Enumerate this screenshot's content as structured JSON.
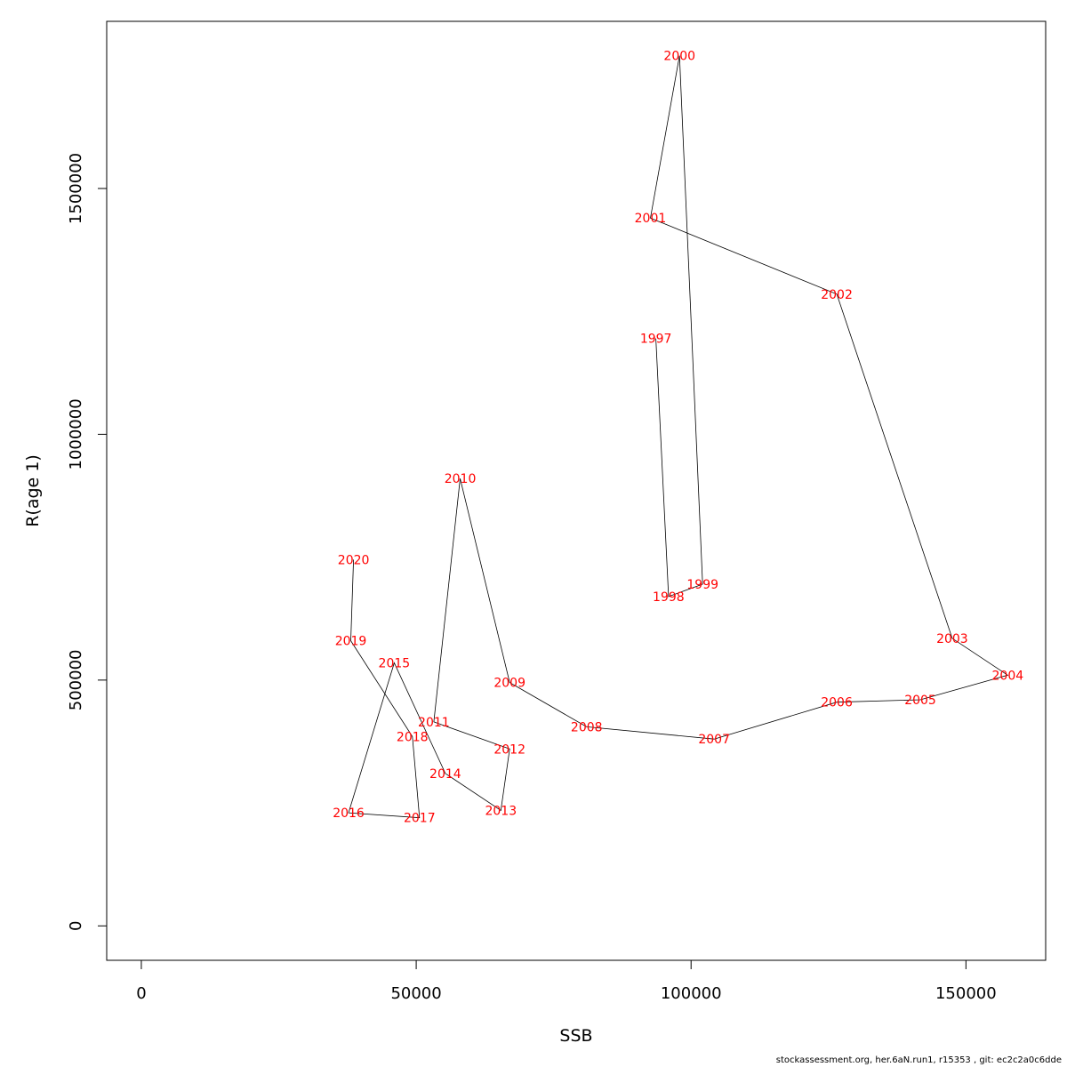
{
  "chart_data": {
    "type": "line",
    "title": "",
    "xlabel": "SSB",
    "ylabel": "R(age 1)",
    "xlim": [
      -6300,
      164500
    ],
    "ylim": [
      -70000,
      1840000
    ],
    "x_ticks": [
      0,
      50000,
      100000,
      150000
    ],
    "y_ticks": [
      0,
      500000,
      1000000,
      1500000
    ],
    "grid": false,
    "legend": "none",
    "line_color": "#000000",
    "label_color": "#ff0000",
    "points": [
      {
        "year": "1997",
        "x": 93600,
        "y": 1195000
      },
      {
        "year": "1998",
        "x": 95900,
        "y": 670000
      },
      {
        "year": "1999",
        "x": 102100,
        "y": 695000
      },
      {
        "year": "2000",
        "x": 97900,
        "y": 1770000
      },
      {
        "year": "2001",
        "x": 92600,
        "y": 1440000
      },
      {
        "year": "2002",
        "x": 126500,
        "y": 1285000
      },
      {
        "year": "2003",
        "x": 147500,
        "y": 585000
      },
      {
        "year": "2004",
        "x": 157600,
        "y": 510000
      },
      {
        "year": "2005",
        "x": 141700,
        "y": 460000
      },
      {
        "year": "2006",
        "x": 126500,
        "y": 455000
      },
      {
        "year": "2007",
        "x": 104200,
        "y": 380000
      },
      {
        "year": "2008",
        "x": 81000,
        "y": 405000
      },
      {
        "year": "2009",
        "x": 67000,
        "y": 495000
      },
      {
        "year": "2010",
        "x": 58000,
        "y": 910000
      },
      {
        "year": "2011",
        "x": 53200,
        "y": 415000
      },
      {
        "year": "2012",
        "x": 67000,
        "y": 360000
      },
      {
        "year": "2013",
        "x": 65400,
        "y": 235000
      },
      {
        "year": "2014",
        "x": 55300,
        "y": 310000
      },
      {
        "year": "2015",
        "x": 46000,
        "y": 535000
      },
      {
        "year": "2016",
        "x": 37700,
        "y": 230000
      },
      {
        "year": "2017",
        "x": 50600,
        "y": 220000
      },
      {
        "year": "2018",
        "x": 49300,
        "y": 385000
      },
      {
        "year": "2019",
        "x": 38100,
        "y": 580000
      },
      {
        "year": "2020",
        "x": 38600,
        "y": 745000
      }
    ]
  },
  "footer": "stockassessment.org, her.6aN.run1, r15353 , git: ec2c2a0c6dde"
}
